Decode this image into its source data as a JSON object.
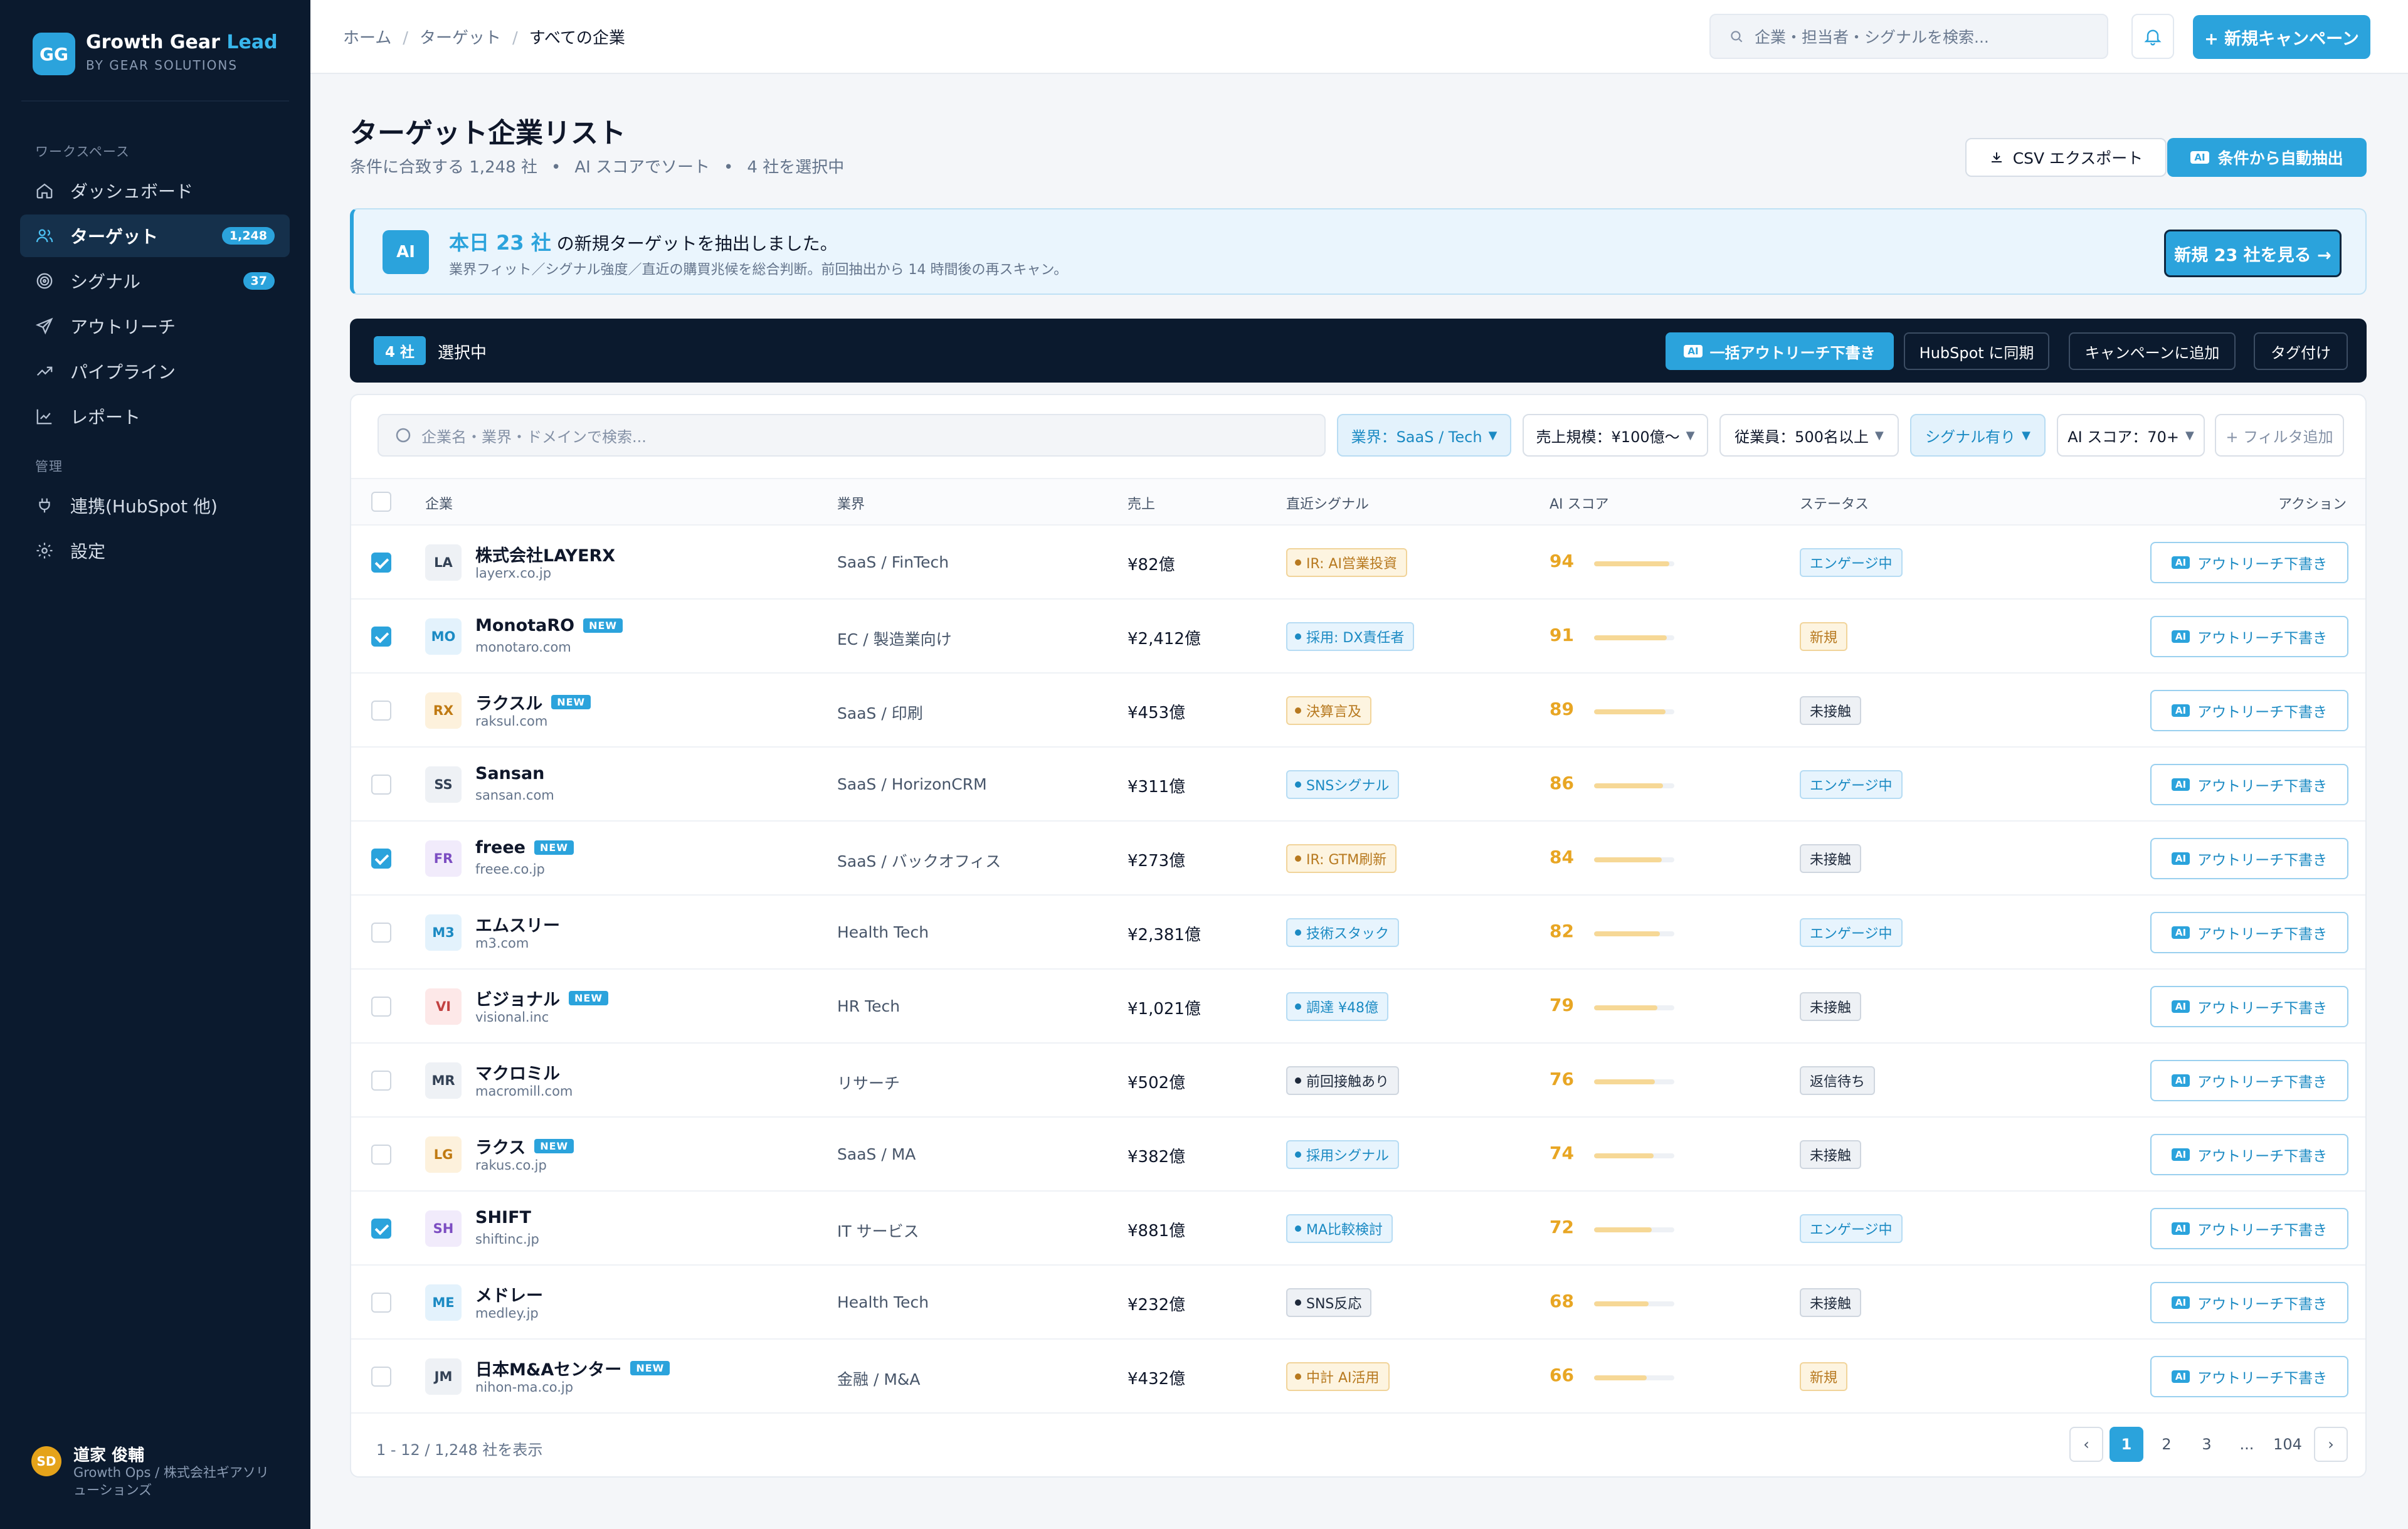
{
  "brand": {
    "logo": "GG",
    "name_a": "Growth Gear",
    "name_b": "Lead",
    "sub": "BY GEAR SOLUTIONS"
  },
  "sidebar": {
    "workspace_label": "ワークスペース",
    "admin_label": "管理",
    "items": [
      {
        "label": "ダッシュボード",
        "icon": "home-icon"
      },
      {
        "label": "ターゲット",
        "icon": "users-icon",
        "count": "1,248"
      },
      {
        "label": "シグナル",
        "icon": "target-icon",
        "count": "37"
      },
      {
        "label": "アウトリーチ",
        "icon": "send-icon"
      },
      {
        "label": "パイプライン",
        "icon": "trend-icon"
      },
      {
        "label": "レポート",
        "icon": "chart-icon"
      },
      {
        "label": "連携(HubSpot 他)",
        "icon": "plug-icon"
      },
      {
        "label": "設定",
        "icon": "gear-icon"
      }
    ],
    "user": {
      "initials": "SD",
      "name": "道家 俊輔",
      "role": "Growth Ops / 株式会社ギアソリューションズ"
    }
  },
  "topbar": {
    "crumbs": [
      "ホーム",
      "ターゲット",
      "すべての企業"
    ],
    "search_placeholder": "企業・担当者・シグナルを検索...",
    "new_campaign": "+ 新規キャンペーン"
  },
  "page": {
    "title": "ターゲット企業リスト",
    "sub1": "条件に合致する 1,248 社",
    "sub2": "AI スコアでソート",
    "sub3": "4 社を選択中",
    "csv": "CSV エクスポート",
    "auto": "条件から自動抽出",
    "ai_tag": "AI"
  },
  "banner": {
    "icon": "AI",
    "highlight": "本日 23 社",
    "text": "の新規ターゲットを抽出しました。",
    "sub": "業界フィット／シグナル強度／直近の購買兆候を総合判断。前回抽出から 14 時間後の再スキャン。",
    "button": "新規 23 社を見る →"
  },
  "selection": {
    "count": "4 社",
    "label": "選択中",
    "ai": "一括アウトリーチ下書き",
    "hubspot": "HubSpot に同期",
    "campaign": "キャンペーンに追加",
    "tag": "タグ付け"
  },
  "filters": {
    "placeholder": "企業名・業界・ドメインで検索...",
    "chips": [
      {
        "label": "業界：SaaS / Tech",
        "active": true
      },
      {
        "label": "売上規模：¥100億〜",
        "active": false
      },
      {
        "label": "従業員：500名以上",
        "active": false
      },
      {
        "label": "シグナル有り",
        "active": true
      },
      {
        "label": "AI スコア：70+",
        "active": false
      }
    ],
    "add": "+ フィルタ追加"
  },
  "table": {
    "headers": {
      "company": "企業",
      "industry": "業界",
      "revenue": "売上",
      "signal": "直近シグナル",
      "score": "AI スコア",
      "status": "ステータス",
      "action": "アクション"
    },
    "action_label": "アウトリーチ下書き",
    "new_label": "NEW",
    "rows": [
      {
        "abbr": "LA",
        "name": "株式会社LAYERX",
        "domain": "layerx.co.jp",
        "industry": "SaaS / FinTech",
        "revenue": "¥82億",
        "signal": "IR: AI営業投資",
        "sig_type": "amber",
        "score": 94,
        "status": "エンゲージ中",
        "st_type": "blue",
        "checked": true,
        "new": false,
        "av_bg": "#eef1f5",
        "av_fg": "#334155"
      },
      {
        "abbr": "MO",
        "name": "MonotaRO",
        "domain": "monotaro.com",
        "industry": "EC / 製造業向け",
        "revenue": "¥2,412億",
        "signal": "採用: DX責任者",
        "sig_type": "blue",
        "score": 91,
        "status": "新規",
        "st_type": "amber",
        "checked": true,
        "new": true,
        "av_bg": "#e3f2fc",
        "av_fg": "#1b8ac3"
      },
      {
        "abbr": "RX",
        "name": "ラクスル",
        "domain": "raksul.com",
        "industry": "SaaS / 印刷",
        "revenue": "¥453億",
        "signal": "決算言及",
        "sig_type": "amber",
        "score": 89,
        "status": "未接触",
        "st_type": "gray",
        "checked": false,
        "new": true,
        "av_bg": "#fdf1dc",
        "av_fg": "#c07a12"
      },
      {
        "abbr": "SS",
        "name": "Sansan",
        "domain": "sansan.com",
        "industry": "SaaS / HorizonCRM",
        "revenue": "¥311億",
        "signal": "SNSシグナル",
        "sig_type": "blue",
        "score": 86,
        "status": "エンゲージ中",
        "st_type": "blue",
        "checked": false,
        "new": false,
        "av_bg": "#eef1f5",
        "av_fg": "#334155"
      },
      {
        "abbr": "FR",
        "name": "freee",
        "domain": "freee.co.jp",
        "industry": "SaaS / バックオフィス",
        "revenue": "¥273億",
        "signal": "IR: GTM刷新",
        "sig_type": "amber",
        "score": 84,
        "status": "未接触",
        "st_type": "gray",
        "checked": true,
        "new": true,
        "av_bg": "#f1ebfb",
        "av_fg": "#7c4dc2"
      },
      {
        "abbr": "M3",
        "name": "エムスリー",
        "domain": "m3.com",
        "industry": "Health Tech",
        "revenue": "¥2,381億",
        "signal": "技術スタック",
        "sig_type": "blue",
        "score": 82,
        "status": "エンゲージ中",
        "st_type": "blue",
        "checked": false,
        "new": false,
        "av_bg": "#e3f2fc",
        "av_fg": "#1b8ac3"
      },
      {
        "abbr": "VI",
        "name": "ビジョナル",
        "domain": "visional.inc",
        "industry": "HR Tech",
        "revenue": "¥1,021億",
        "signal": "調達 ¥48億",
        "sig_type": "blue",
        "score": 79,
        "status": "未接触",
        "st_type": "gray",
        "checked": false,
        "new": true,
        "av_bg": "#fde8e8",
        "av_fg": "#c24141"
      },
      {
        "abbr": "MR",
        "name": "マクロミル",
        "domain": "macromill.com",
        "industry": "リサーチ",
        "revenue": "¥502億",
        "signal": "前回接触あり",
        "sig_type": "gray",
        "score": 76,
        "status": "返信待ち",
        "st_type": "gray",
        "checked": false,
        "new": false,
        "av_bg": "#eef1f5",
        "av_fg": "#334155"
      },
      {
        "abbr": "LG",
        "name": "ラクス",
        "domain": "rakus.co.jp",
        "industry": "SaaS / MA",
        "revenue": "¥382億",
        "signal": "採用シグナル",
        "sig_type": "blue",
        "score": 74,
        "status": "未接触",
        "st_type": "gray",
        "checked": false,
        "new": true,
        "av_bg": "#fdf1dc",
        "av_fg": "#c07a12"
      },
      {
        "abbr": "SH",
        "name": "SHIFT",
        "domain": "shiftinc.jp",
        "industry": "IT サービス",
        "revenue": "¥881億",
        "signal": "MA比較検討",
        "sig_type": "blue",
        "score": 72,
        "status": "エンゲージ中",
        "st_type": "blue",
        "checked": true,
        "new": false,
        "av_bg": "#f1ebfb",
        "av_fg": "#7c4dc2"
      },
      {
        "abbr": "ME",
        "name": "メドレー",
        "domain": "medley.jp",
        "industry": "Health Tech",
        "revenue": "¥232億",
        "signal": "SNS反応",
        "sig_type": "gray",
        "score": 68,
        "status": "未接触",
        "st_type": "gray",
        "checked": false,
        "new": false,
        "av_bg": "#e3f2fc",
        "av_fg": "#1b8ac3"
      },
      {
        "abbr": "JM",
        "name": "日本M&Aセンター",
        "domain": "nihon-ma.co.jp",
        "industry": "金融 / M&A",
        "revenue": "¥432億",
        "signal": "中計 AI活用",
        "sig_type": "amber",
        "score": 66,
        "status": "新規",
        "st_type": "amber",
        "checked": false,
        "new": true,
        "av_bg": "#eef1f5",
        "av_fg": "#334155"
      }
    ]
  },
  "pagination": {
    "summary": "1 - 12 / 1,248 社を表示",
    "prev": "‹",
    "pages": [
      "1",
      "2",
      "3",
      "...",
      "104"
    ],
    "next": "›"
  },
  "colors": {
    "accent": "#2ba3dc",
    "sidebar": "#0b1a2e",
    "score": "#e8a624"
  }
}
